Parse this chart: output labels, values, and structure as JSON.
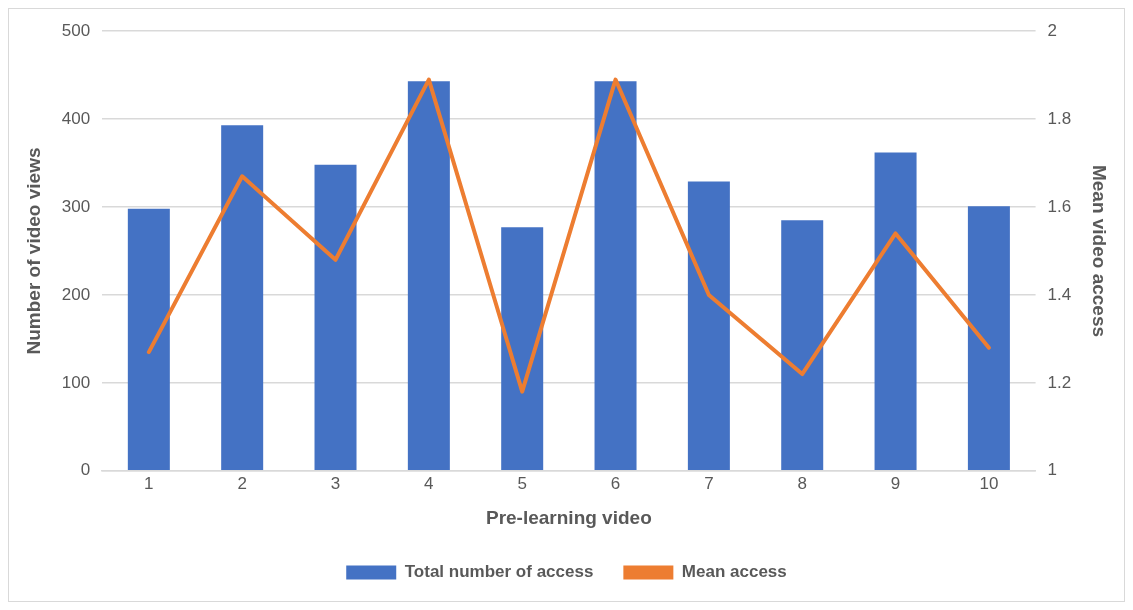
{
  "chart_data": {
    "type": "bar",
    "xlabel": "Pre-learning video",
    "ylabel": "Number of video views",
    "y2label": "Mean video access",
    "categories": [
      "1",
      "2",
      "3",
      "4",
      "5",
      "6",
      "7",
      "8",
      "9",
      "10"
    ],
    "series": [
      {
        "name": "Total number of access",
        "color": "#4472c4",
        "values": [
          298,
          393,
          348,
          443,
          277,
          443,
          329,
          285,
          362,
          301
        ]
      },
      {
        "name": "Mean access",
        "type": "line",
        "axis": "y2",
        "color": "#ed7d31",
        "values": [
          1.27,
          1.67,
          1.48,
          1.89,
          1.18,
          1.89,
          1.4,
          1.22,
          1.54,
          1.28
        ]
      }
    ],
    "ylim": [
      0,
      500
    ],
    "yticks": [
      0,
      100,
      200,
      300,
      400,
      500
    ],
    "y2lim": [
      1,
      2
    ],
    "y2ticks": [
      1,
      1.2,
      1.4,
      1.6,
      1.8,
      2
    ],
    "grid": "y",
    "legend": "bottom",
    "marker": "none",
    "line_style": "solid"
  }
}
